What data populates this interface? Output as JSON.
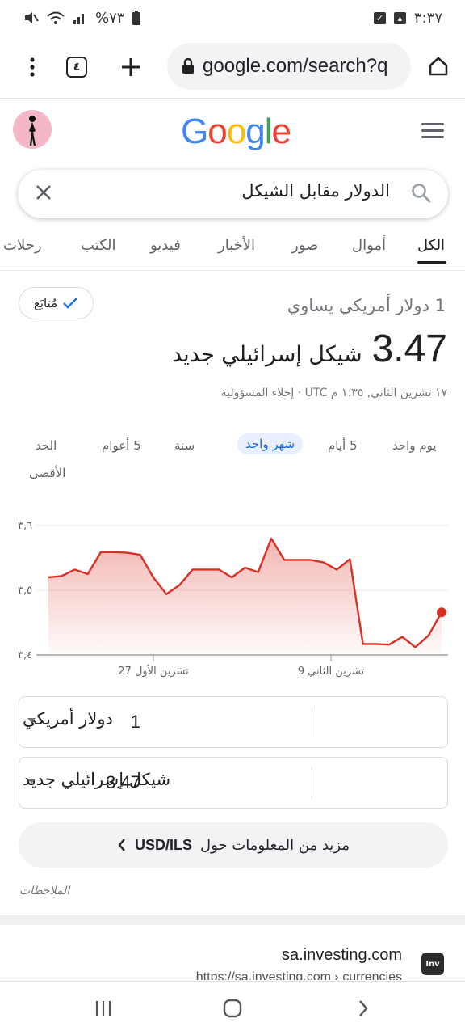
{
  "status_bar": {
    "time": "٣:٣٧",
    "battery": "%٧٣",
    "icons": [
      "image-icon",
      "checkbox-icon",
      "mute-icon",
      "wifi-icon",
      "signal-icon",
      "battery-icon"
    ]
  },
  "browser": {
    "tab_count": "٤",
    "url": "google.com/search?q",
    "icons": [
      "menu-dots-icon",
      "tabs-icon",
      "plus-icon",
      "lock-icon",
      "home-icon"
    ]
  },
  "google": {
    "logo_letters": [
      {
        "ch": "G",
        "color": "#4285F4"
      },
      {
        "ch": "o",
        "color": "#EA4335"
      },
      {
        "ch": "o",
        "color": "#FBBC05"
      },
      {
        "ch": "g",
        "color": "#4285F4"
      },
      {
        "ch": "l",
        "color": "#34A853"
      },
      {
        "ch": "e",
        "color": "#EA4335"
      }
    ]
  },
  "search": {
    "query": "الدولار مقابل الشيكل"
  },
  "tabs": [
    "الكل",
    "أموال",
    "صور",
    "الأخبار",
    "فيديو",
    "الكتب",
    "رحلات"
  ],
  "active_tab": "الكل",
  "currency": {
    "follow_label": "مُتابَع",
    "equals_text": "1 دولار أمريكي يساوي",
    "rate": "3.47",
    "target_currency": "شيكل إسرائيلي جديد",
    "timestamp": "١٧ تشرين الثاني, ١:٣٥ م UTC · إخلاء المسؤولية"
  },
  "ranges": [
    "يوم واحد",
    "5 أيام",
    "شهر واحد",
    "سنة",
    "5 أعوام",
    "الحد",
    "الأقصى"
  ],
  "active_range": "شهر واحد",
  "chart_data": {
    "type": "area",
    "y_ticks": [
      "٣,٦",
      "٣,٥",
      "٣,٤"
    ],
    "ylim": [
      3.4,
      3.6
    ],
    "x_labels": [
      "27 تشرين الأول",
      "9 تشرين الثاني"
    ],
    "values": [
      3.52,
      3.522,
      3.532,
      3.525,
      3.559,
      3.559,
      3.558,
      3.555,
      3.52,
      3.494,
      3.508,
      3.532,
      3.532,
      3.532,
      3.52,
      3.535,
      3.528,
      3.58,
      3.547,
      3.547,
      3.547,
      3.543,
      3.532,
      3.548,
      3.417,
      3.417,
      3.416,
      3.428,
      3.412,
      3.43,
      3.466
    ],
    "line_color": "#d93025"
  },
  "converter": {
    "from_amount": "1",
    "from_currency": "دولار أمريكي",
    "to_amount": "3.47",
    "to_currency": "شيكل إسرائيلي جديد"
  },
  "more_info": {
    "text": "مزيد من المعلومات حول",
    "pair": "USD/ILS"
  },
  "notes_label": "الملاحظات",
  "result": {
    "site": "sa.investing.com",
    "url": "https://sa.investing.com › currencies",
    "favicon_text": "Inv"
  }
}
